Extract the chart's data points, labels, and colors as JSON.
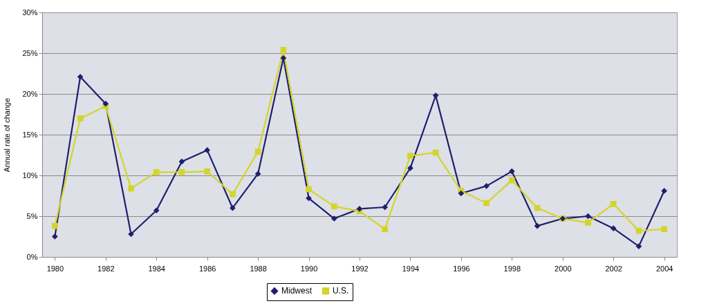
{
  "chart_data": {
    "type": "line",
    "ylabel": "Annual rate of change",
    "x": [
      1980,
      1981,
      1982,
      1983,
      1984,
      1985,
      1986,
      1987,
      1988,
      1989,
      1990,
      1991,
      1992,
      1993,
      1994,
      1995,
      1996,
      1997,
      1998,
      1999,
      2000,
      2001,
      2002,
      2003,
      2004
    ],
    "series": [
      {
        "name": "Midwest",
        "color": "#1f1f6e",
        "marker": "diamond",
        "values": [
          2.5,
          22.1,
          18.8,
          2.8,
          5.7,
          11.7,
          13.1,
          6.0,
          10.2,
          24.4,
          7.2,
          4.7,
          5.9,
          6.1,
          10.9,
          19.8,
          7.8,
          8.7,
          10.5,
          3.8,
          4.7,
          5.0,
          3.5,
          1.3,
          8.1
        ]
      },
      {
        "name": "U.S.",
        "color": "#d4d42a",
        "marker": "square",
        "values": [
          3.8,
          17.0,
          18.5,
          8.4,
          10.4,
          10.4,
          10.5,
          7.7,
          12.9,
          25.4,
          8.3,
          6.2,
          5.6,
          3.4,
          12.4,
          12.8,
          8.1,
          6.6,
          9.4,
          6.0,
          4.7,
          4.2,
          6.5,
          3.2,
          3.4
        ]
      }
    ],
    "xlim": [
      1979.5,
      2004.5
    ],
    "xticks": [
      1980,
      1982,
      1984,
      1986,
      1988,
      1990,
      1992,
      1994,
      1996,
      1998,
      2000,
      2002,
      2004
    ],
    "ylim": [
      0,
      30
    ],
    "yticks": [
      {
        "value": 0,
        "label": "0%"
      },
      {
        "value": 5,
        "label": "5%"
      },
      {
        "value": 10,
        "label": "10%"
      },
      {
        "value": 15,
        "label": "15%"
      },
      {
        "value": 20,
        "label": "20%"
      },
      {
        "value": 25,
        "label": "25%"
      },
      {
        "value": 30,
        "label": "30%"
      }
    ],
    "grid": "y",
    "legend": "bottom",
    "line_style": "solid"
  }
}
